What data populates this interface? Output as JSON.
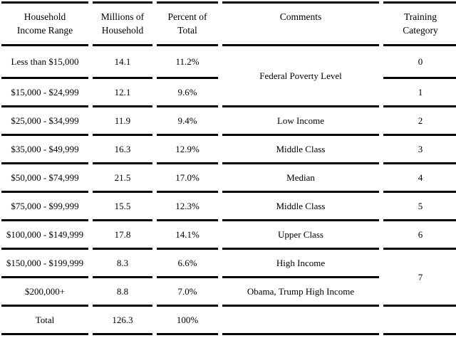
{
  "table": {
    "headers": [
      "Household\nIncome Range",
      "Millions of\nHousehold",
      "Percent of\nTotal",
      "Comments",
      "Training\nCategory"
    ],
    "rows": [
      {
        "income_range": "Less than $15,000",
        "millions": "14.1",
        "percent": "11.2%",
        "comment": "Federal Poverty Level",
        "category": "0"
      },
      {
        "income_range": "$15,000 - $24,999",
        "millions": "12.1",
        "percent": "9.6%",
        "category": "1"
      },
      {
        "income_range": "$25,000 - $34,999",
        "millions": "11.9",
        "percent": "9.4%",
        "comment": "Low Income",
        "category": "2"
      },
      {
        "income_range": "$35,000 - $49,999",
        "millions": "16.3",
        "percent": "12.9%",
        "comment": "Middle Class",
        "category": "3"
      },
      {
        "income_range": "$50,000 - $74,999",
        "millions": "21.5",
        "percent": "17.0%",
        "comment": "Median",
        "category": "4"
      },
      {
        "income_range": "$75,000 - $99,999",
        "millions": "15.5",
        "percent": "12.3%",
        "comment": "Middle Class",
        "category": "5"
      },
      {
        "income_range": "$100,000 - $149,999",
        "millions": "17.8",
        "percent": "14.1%",
        "comment": "Upper Class",
        "category": "6"
      },
      {
        "income_range": "$150,000 - $199,999",
        "millions": "8.3",
        "percent": "6.6%",
        "comment": "High Income",
        "category": "7"
      },
      {
        "income_range": "$200,000+",
        "millions": "8.8",
        "percent": "7.0%",
        "comment": "Obama, Trump High Income"
      }
    ],
    "total": {
      "label": "Total",
      "millions": "126.3",
      "percent": "100%"
    }
  },
  "chart_data": {
    "type": "table",
    "columns": [
      "Household Income Range",
      "Millions of Household",
      "Percent of Total",
      "Comments",
      "Training Category"
    ],
    "rows": [
      [
        "Less than $15,000",
        14.1,
        "11.2%",
        "Federal Poverty Level",
        0
      ],
      [
        "$15,000 - $24,999",
        12.1,
        "9.6%",
        "Federal Poverty Level",
        1
      ],
      [
        "$25,000 - $34,999",
        11.9,
        "9.4%",
        "Low Income",
        2
      ],
      [
        "$35,000 - $49,999",
        16.3,
        "12.9%",
        "Middle Class",
        3
      ],
      [
        "$50,000 - $74,999",
        21.5,
        "17.0%",
        "Median",
        4
      ],
      [
        "$75,000 - $99,999",
        15.5,
        "12.3%",
        "Middle Class",
        5
      ],
      [
        "$100,000 - $149,999",
        17.8,
        "14.1%",
        "Upper Class",
        6
      ],
      [
        "$150,000 - $199,999",
        8.3,
        "6.6%",
        "High Income",
        7
      ],
      [
        "$200,000+",
        8.8,
        "7.0%",
        "Obama, Trump High Income",
        7
      ],
      [
        "Total",
        126.3,
        "100%",
        "",
        ""
      ]
    ]
  }
}
